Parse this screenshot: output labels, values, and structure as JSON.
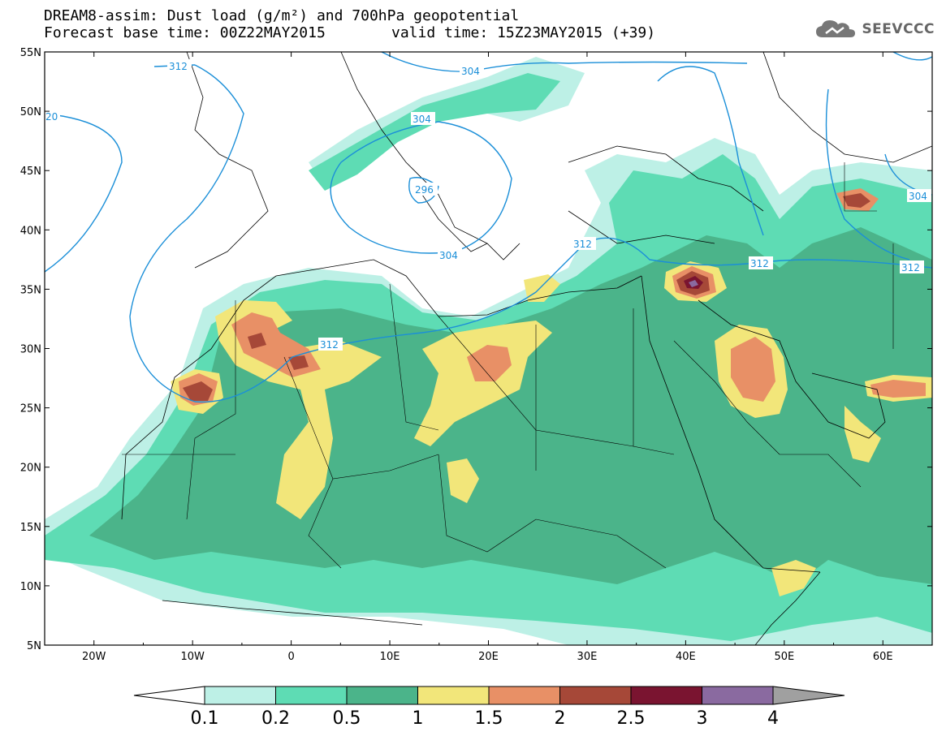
{
  "header": {
    "title_line1": "DREAM8-assim: Dust load (g/m²) and 700hPa geopotential",
    "title_line2": "Forecast base time: 00Z22MAY2015",
    "valid_time": "valid time: 15Z23MAY2015 (+39)"
  },
  "logo": {
    "text": "SEEVCCC",
    "icon": "cloud-icon"
  },
  "map": {
    "lat_labels": [
      "55N",
      "50N",
      "45N",
      "40N",
      "35N",
      "30N",
      "25N",
      "20N",
      "15N",
      "10N",
      "5N"
    ],
    "lon_labels": [
      "20W",
      "10W",
      "0",
      "10E",
      "20E",
      "30E",
      "40E",
      "50E",
      "60E"
    ],
    "lat_range": [
      5,
      55
    ],
    "lon_range": [
      -25,
      65
    ],
    "contour_color": "#1b8fd8",
    "contour_labels": [
      "312",
      "304",
      "20",
      "304",
      "296",
      "304",
      "312",
      "312",
      "312",
      "312",
      "304"
    ]
  },
  "colorbar": {
    "ticks": [
      "0.1",
      "0.2",
      "0.5",
      "1",
      "1.5",
      "2",
      "2.5",
      "3",
      "4"
    ],
    "colors": [
      "#bdf0e6",
      "#5edcb4",
      "#4bb48a",
      "#f2e67a",
      "#e89066",
      "#a64838",
      "#7a1430",
      "#8a6aa0"
    ],
    "below_color": "#ffffff",
    "above_color": "#a0a0a0"
  }
}
